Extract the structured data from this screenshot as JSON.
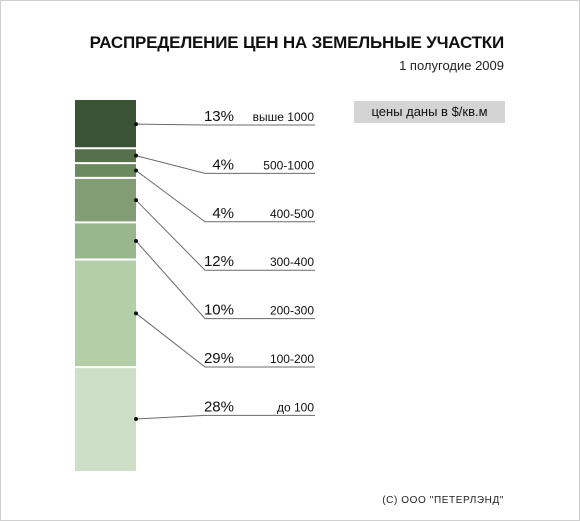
{
  "header": {
    "title": "РАСПРЕДЕЛЕНИЕ ЦЕН НА ЗЕМЕЛЬНЫЕ УЧАСТКИ",
    "subtitle": "1 полугодие 2009"
  },
  "note": "цены даны в $/кв.м",
  "footer": "(С) ООО \"ПЕТЕРЛЭНД\"",
  "chart_data": {
    "type": "bar",
    "orientation": "stacked-vertical",
    "title": "РАСПРЕДЕЛЕНИЕ ЦЕН НА ЗЕМЕЛЬНЫЕ УЧАСТКИ",
    "subtitle": "1 полугодие 2009",
    "unit_note": "цены даны в $/кв.м",
    "segments": [
      {
        "range": "выше 1000",
        "percent": 13,
        "label": "13%",
        "color": "#3b5335"
      },
      {
        "range": "500-1000",
        "percent": 4,
        "label": "4%",
        "color": "#55704b"
      },
      {
        "range": "400-500",
        "percent": 4,
        "label": "4%",
        "color": "#6b8a5e"
      },
      {
        "range": "300-400",
        "percent": 12,
        "label": "12%",
        "color": "#829d74"
      },
      {
        "range": "200-300",
        "percent": 10,
        "label": "10%",
        "color": "#98b68c"
      },
      {
        "range": "100-200",
        "percent": 29,
        "label": "29%",
        "color": "#b3cfa8"
      },
      {
        "range": "до 100",
        "percent": 28,
        "label": "28%",
        "color": "#cddfc6"
      }
    ]
  }
}
